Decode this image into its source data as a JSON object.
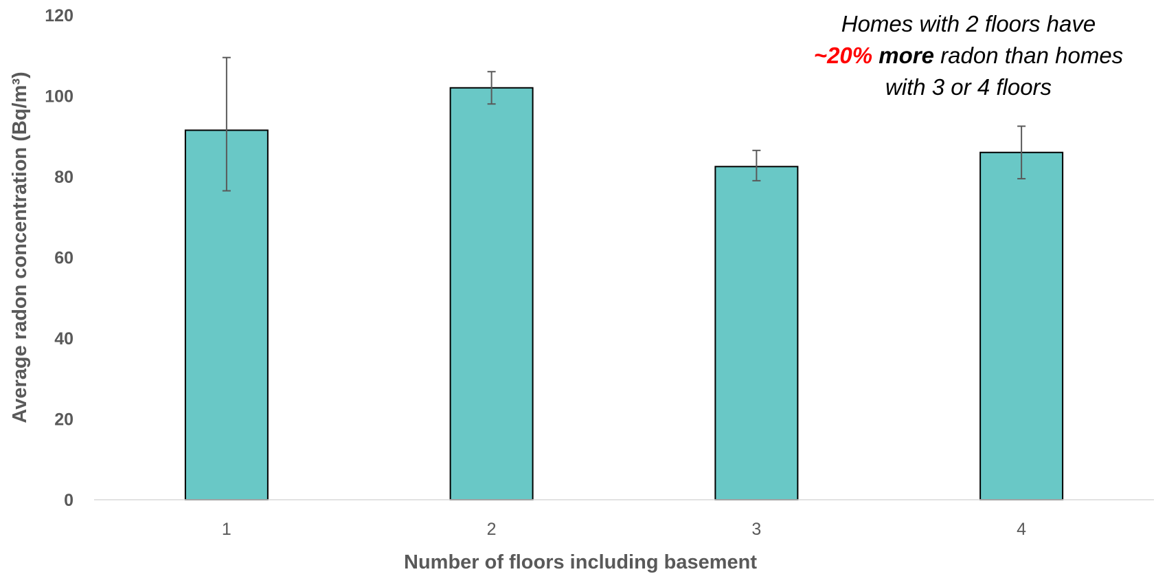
{
  "chart_data": {
    "type": "bar",
    "categories": [
      "1",
      "2",
      "3",
      "4"
    ],
    "values": [
      91.5,
      102,
      82.5,
      86
    ],
    "error_bars": [
      {
        "low": 76.5,
        "high": 109.5
      },
      {
        "low": 98,
        "high": 106
      },
      {
        "low": 79,
        "high": 86.5
      },
      {
        "low": 79.5,
        "high": 92.5
      }
    ],
    "xlabel": "Number of floors including basement",
    "ylabel": "Average radon concentration (Bq/m³)",
    "ylim": [
      0,
      120
    ],
    "yticks": [
      "0",
      "20",
      "40",
      "60",
      "80",
      "100",
      "120"
    ],
    "grid": false,
    "bar_color": "#69c8c6",
    "bar_edge_color": "#000000",
    "annotation": {
      "line1": "Homes with 2 floors have",
      "line2_highlight": "~20%",
      "line2_bold": "more",
      "line2_rest": "radon than homes",
      "line3": "with 3 or 4 floors",
      "highlight_color": "#ff0000"
    }
  }
}
